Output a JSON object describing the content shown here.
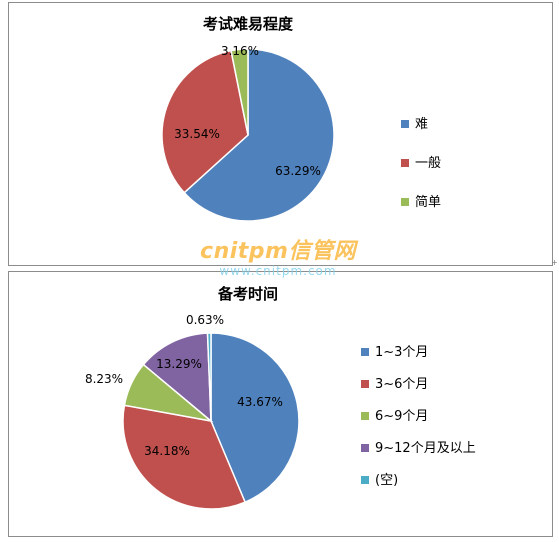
{
  "chart_data": [
    {
      "type": "pie",
      "title": "考试难易程度",
      "categories": [
        "难",
        "一般",
        "简单"
      ],
      "values": [
        63.29,
        33.54,
        3.16
      ],
      "data_labels": [
        "63.29%",
        "33.54%",
        "3.16%"
      ],
      "colors": [
        "#4f81bd",
        "#c0504d",
        "#9bbb59"
      ],
      "legend_position": "right"
    },
    {
      "type": "pie",
      "title": "备考时间",
      "categories": [
        "1~3个月",
        "3~6个月",
        "6~9个月",
        "9~12个月及以上",
        "(空)"
      ],
      "values": [
        43.67,
        34.18,
        8.23,
        13.29,
        0.63
      ],
      "data_labels": [
        "43.67%",
        "34.18%",
        "8.23%",
        "13.29%",
        "0.63%"
      ],
      "colors": [
        "#4f81bd",
        "#c0504d",
        "#9bbb59",
        "#8064a2",
        "#4bacc6"
      ],
      "legend_position": "right"
    }
  ],
  "watermark": {
    "brand": "cnitpm信管网",
    "url": "www.cnitpm.com"
  },
  "resize_handle_icon": "plus-icon"
}
